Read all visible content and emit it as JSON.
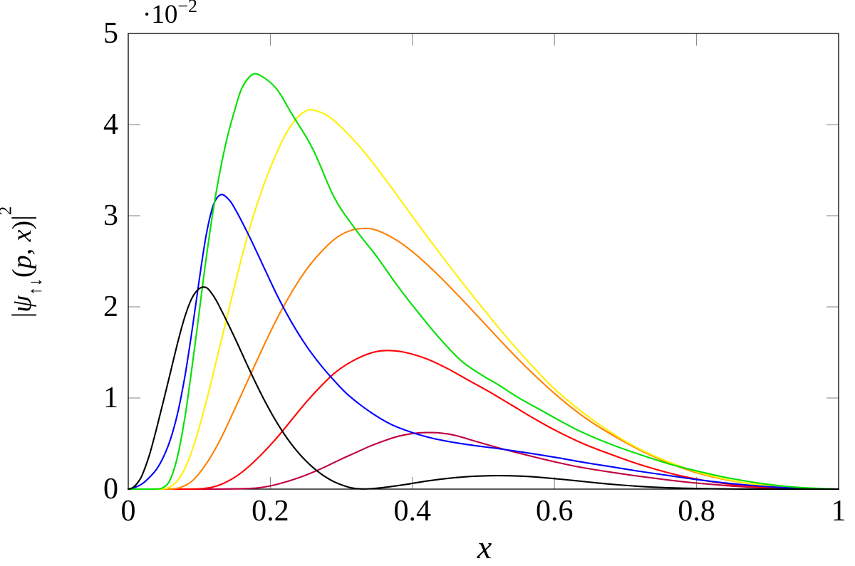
{
  "figure": {
    "x_axis_label": "x",
    "y_axis_label": {
      "bar_open": "|",
      "psi": "ψ",
      "subscript": "↑↓",
      "paren_open": "(",
      "vars": "p, x",
      "paren_close": ")|",
      "exponent": "2"
    },
    "multiplier": {
      "base": "·10",
      "exponent": "−2"
    },
    "x_tick_labels": [
      "0",
      "0.2",
      "0.4",
      "0.6",
      "0.8",
      "1"
    ],
    "y_tick_labels": [
      "0",
      "1",
      "2",
      "3",
      "4",
      "5"
    ]
  },
  "chart_data": {
    "type": "line",
    "title": "",
    "xlabel": "x",
    "ylabel": "|ψ↑↓(p, x)|²",
    "y_axis_multiplier": "·10⁻²",
    "xlim": [
      0,
      1
    ],
    "ylim": [
      0,
      0.05
    ],
    "x_ticks": [
      0,
      0.2,
      0.4,
      0.6,
      0.8,
      1
    ],
    "y_ticks_units": [
      0,
      1,
      2,
      3,
      4,
      5
    ],
    "y_unit": "1e-2",
    "grid": false,
    "legend": "none",
    "note": "Seven unlabeled bell-shaped curves; y values of series points are in units of 10^-2. The black curve has a node near x=0.32 and a small second hump near x=0.52.",
    "series": [
      {
        "name": "purple",
        "color": "#BF0040",
        "points": [
          [
            0,
            0
          ],
          [
            0.12,
            0
          ],
          [
            0.16,
            0.005
          ],
          [
            0.18,
            0.012
          ],
          [
            0.2,
            0.035
          ],
          [
            0.22,
            0.075
          ],
          [
            0.24,
            0.125
          ],
          [
            0.26,
            0.185
          ],
          [
            0.28,
            0.255
          ],
          [
            0.3,
            0.33
          ],
          [
            0.32,
            0.4
          ],
          [
            0.34,
            0.47
          ],
          [
            0.36,
            0.53
          ],
          [
            0.38,
            0.58
          ],
          [
            0.4,
            0.61
          ],
          [
            0.42,
            0.62
          ],
          [
            0.44,
            0.615
          ],
          [
            0.46,
            0.59
          ],
          [
            0.48,
            0.545
          ],
          [
            0.5,
            0.5
          ],
          [
            0.52,
            0.455
          ],
          [
            0.56,
            0.375
          ],
          [
            0.6,
            0.3
          ],
          [
            0.64,
            0.235
          ],
          [
            0.68,
            0.185
          ],
          [
            0.72,
            0.14
          ],
          [
            0.76,
            0.1
          ],
          [
            0.8,
            0.066
          ],
          [
            0.84,
            0.04
          ],
          [
            0.88,
            0.02
          ],
          [
            0.92,
            0.008
          ],
          [
            0.96,
            0.002
          ],
          [
            1,
            0
          ]
        ]
      },
      {
        "name": "red",
        "color": "#FF0000",
        "points": [
          [
            0,
            0
          ],
          [
            0.08,
            0
          ],
          [
            0.11,
            0.01
          ],
          [
            0.13,
            0.05
          ],
          [
            0.15,
            0.13
          ],
          [
            0.17,
            0.25
          ],
          [
            0.19,
            0.4
          ],
          [
            0.21,
            0.57
          ],
          [
            0.23,
            0.76
          ],
          [
            0.25,
            0.95
          ],
          [
            0.27,
            1.12
          ],
          [
            0.29,
            1.27
          ],
          [
            0.31,
            1.38
          ],
          [
            0.33,
            1.46
          ],
          [
            0.35,
            1.51
          ],
          [
            0.37,
            1.52
          ],
          [
            0.39,
            1.5
          ],
          [
            0.42,
            1.43
          ],
          [
            0.45,
            1.32
          ],
          [
            0.48,
            1.19
          ],
          [
            0.51,
            1.06
          ],
          [
            0.54,
            0.92
          ],
          [
            0.57,
            0.78
          ],
          [
            0.6,
            0.65
          ],
          [
            0.64,
            0.5
          ],
          [
            0.68,
            0.38
          ],
          [
            0.72,
            0.27
          ],
          [
            0.76,
            0.18
          ],
          [
            0.8,
            0.11
          ],
          [
            0.84,
            0.06
          ],
          [
            0.88,
            0.028
          ],
          [
            0.92,
            0.01
          ],
          [
            0.96,
            0.002
          ],
          [
            1,
            0
          ]
        ]
      },
      {
        "name": "orange",
        "color": "#FF8000",
        "points": [
          [
            0,
            0
          ],
          [
            0.05,
            0
          ],
          [
            0.07,
            0.01
          ],
          [
            0.09,
            0.09
          ],
          [
            0.11,
            0.28
          ],
          [
            0.13,
            0.55
          ],
          [
            0.15,
            0.88
          ],
          [
            0.17,
            1.22
          ],
          [
            0.19,
            1.56
          ],
          [
            0.21,
            1.88
          ],
          [
            0.23,
            2.16
          ],
          [
            0.25,
            2.4
          ],
          [
            0.27,
            2.59
          ],
          [
            0.29,
            2.74
          ],
          [
            0.31,
            2.83
          ],
          [
            0.33,
            2.86
          ],
          [
            0.35,
            2.84
          ],
          [
            0.38,
            2.72
          ],
          [
            0.41,
            2.54
          ],
          [
            0.44,
            2.32
          ],
          [
            0.47,
            2.08
          ],
          [
            0.5,
            1.83
          ],
          [
            0.53,
            1.58
          ],
          [
            0.56,
            1.34
          ],
          [
            0.6,
            1.05
          ],
          [
            0.64,
            0.8
          ],
          [
            0.68,
            0.6
          ],
          [
            0.72,
            0.43
          ],
          [
            0.76,
            0.29
          ],
          [
            0.8,
            0.18
          ],
          [
            0.84,
            0.105
          ],
          [
            0.88,
            0.055
          ],
          [
            0.92,
            0.024
          ],
          [
            0.96,
            0.007
          ],
          [
            1,
            0
          ]
        ]
      },
      {
        "name": "yellow",
        "color": "#FFF000",
        "points": [
          [
            0,
            0
          ],
          [
            0.04,
            0
          ],
          [
            0.055,
            0.01
          ],
          [
            0.07,
            0.1
          ],
          [
            0.085,
            0.32
          ],
          [
            0.1,
            0.68
          ],
          [
            0.115,
            1.12
          ],
          [
            0.13,
            1.6
          ],
          [
            0.145,
            2.08
          ],
          [
            0.16,
            2.55
          ],
          [
            0.175,
            2.97
          ],
          [
            0.19,
            3.32
          ],
          [
            0.205,
            3.62
          ],
          [
            0.22,
            3.87
          ],
          [
            0.235,
            4.05
          ],
          [
            0.25,
            4.15
          ],
          [
            0.26,
            4.16
          ],
          [
            0.28,
            4.1
          ],
          [
            0.3,
            3.97
          ],
          [
            0.33,
            3.72
          ],
          [
            0.36,
            3.42
          ],
          [
            0.39,
            3.1
          ],
          [
            0.42,
            2.78
          ],
          [
            0.45,
            2.47
          ],
          [
            0.48,
            2.17
          ],
          [
            0.51,
            1.88
          ],
          [
            0.54,
            1.6
          ],
          [
            0.57,
            1.34
          ],
          [
            0.6,
            1.1
          ],
          [
            0.64,
            0.84
          ],
          [
            0.68,
            0.62
          ],
          [
            0.72,
            0.44
          ],
          [
            0.76,
            0.3
          ],
          [
            0.8,
            0.19
          ],
          [
            0.84,
            0.11
          ],
          [
            0.88,
            0.055
          ],
          [
            0.92,
            0.024
          ],
          [
            0.96,
            0.007
          ],
          [
            1,
            0
          ]
        ]
      },
      {
        "name": "blue",
        "color": "#0000FF",
        "points": [
          [
            0,
            0
          ],
          [
            0.01,
            0.02
          ],
          [
            0.02,
            0.06
          ],
          [
            0.03,
            0.13
          ],
          [
            0.04,
            0.22
          ],
          [
            0.05,
            0.36
          ],
          [
            0.06,
            0.56
          ],
          [
            0.07,
            0.85
          ],
          [
            0.08,
            1.25
          ],
          [
            0.09,
            1.75
          ],
          [
            0.1,
            2.3
          ],
          [
            0.11,
            2.8
          ],
          [
            0.12,
            3.12
          ],
          [
            0.13,
            3.23
          ],
          [
            0.14,
            3.19
          ],
          [
            0.15,
            3.08
          ],
          [
            0.17,
            2.78
          ],
          [
            0.19,
            2.45
          ],
          [
            0.21,
            2.12
          ],
          [
            0.23,
            1.83
          ],
          [
            0.25,
            1.58
          ],
          [
            0.27,
            1.37
          ],
          [
            0.29,
            1.19
          ],
          [
            0.31,
            1.03
          ],
          [
            0.34,
            0.85
          ],
          [
            0.37,
            0.71
          ],
          [
            0.4,
            0.62
          ],
          [
            0.43,
            0.555
          ],
          [
            0.46,
            0.51
          ],
          [
            0.49,
            0.475
          ],
          [
            0.52,
            0.445
          ],
          [
            0.56,
            0.4
          ],
          [
            0.6,
            0.35
          ],
          [
            0.64,
            0.295
          ],
          [
            0.68,
            0.245
          ],
          [
            0.72,
            0.195
          ],
          [
            0.76,
            0.15
          ],
          [
            0.8,
            0.105
          ],
          [
            0.84,
            0.068
          ],
          [
            0.88,
            0.038
          ],
          [
            0.92,
            0.017
          ],
          [
            0.96,
            0.005
          ],
          [
            1,
            0
          ]
        ]
      },
      {
        "name": "green",
        "color": "#00E000",
        "points": [
          [
            0,
            0
          ],
          [
            0.035,
            0
          ],
          [
            0.05,
            0.02
          ],
          [
            0.06,
            0.12
          ],
          [
            0.07,
            0.38
          ],
          [
            0.08,
            0.8
          ],
          [
            0.09,
            1.35
          ],
          [
            0.1,
            1.95
          ],
          [
            0.11,
            2.55
          ],
          [
            0.12,
            3.08
          ],
          [
            0.13,
            3.52
          ],
          [
            0.14,
            3.88
          ],
          [
            0.15,
            4.16
          ],
          [
            0.16,
            4.4
          ],
          [
            0.175,
            4.55
          ],
          [
            0.19,
            4.52
          ],
          [
            0.21,
            4.38
          ],
          [
            0.23,
            4.12
          ],
          [
            0.26,
            3.73
          ],
          [
            0.29,
            3.2
          ],
          [
            0.32,
            2.85
          ],
          [
            0.35,
            2.55
          ],
          [
            0.38,
            2.22
          ],
          [
            0.41,
            1.92
          ],
          [
            0.44,
            1.64
          ],
          [
            0.47,
            1.4
          ],
          [
            0.5,
            1.24
          ],
          [
            0.52,
            1.15
          ],
          [
            0.55,
            1.0
          ],
          [
            0.58,
            0.87
          ],
          [
            0.61,
            0.74
          ],
          [
            0.64,
            0.62
          ],
          [
            0.68,
            0.49
          ],
          [
            0.72,
            0.38
          ],
          [
            0.76,
            0.28
          ],
          [
            0.8,
            0.2
          ],
          [
            0.84,
            0.13
          ],
          [
            0.88,
            0.075
          ],
          [
            0.92,
            0.035
          ],
          [
            0.96,
            0.012
          ],
          [
            1,
            0
          ]
        ]
      },
      {
        "name": "black",
        "color": "#000000",
        "points": [
          [
            0,
            0
          ],
          [
            0.005,
            0.01
          ],
          [
            0.01,
            0.04
          ],
          [
            0.015,
            0.09
          ],
          [
            0.02,
            0.16
          ],
          [
            0.03,
            0.38
          ],
          [
            0.04,
            0.67
          ],
          [
            0.05,
            0.98
          ],
          [
            0.06,
            1.3
          ],
          [
            0.07,
            1.62
          ],
          [
            0.08,
            1.9
          ],
          [
            0.09,
            2.1
          ],
          [
            0.1,
            2.2
          ],
          [
            0.11,
            2.21
          ],
          [
            0.12,
            2.12
          ],
          [
            0.13,
            1.98
          ],
          [
            0.15,
            1.66
          ],
          [
            0.17,
            1.32
          ],
          [
            0.19,
            1.0
          ],
          [
            0.21,
            0.72
          ],
          [
            0.23,
            0.49
          ],
          [
            0.25,
            0.31
          ],
          [
            0.27,
            0.175
          ],
          [
            0.29,
            0.08
          ],
          [
            0.31,
            0.022
          ],
          [
            0.325,
            0.003
          ],
          [
            0.34,
            0.004
          ],
          [
            0.36,
            0.018
          ],
          [
            0.39,
            0.05
          ],
          [
            0.42,
            0.088
          ],
          [
            0.45,
            0.118
          ],
          [
            0.48,
            0.138
          ],
          [
            0.51,
            0.147
          ],
          [
            0.54,
            0.146
          ],
          [
            0.57,
            0.135
          ],
          [
            0.6,
            0.115
          ],
          [
            0.63,
            0.092
          ],
          [
            0.66,
            0.068
          ],
          [
            0.69,
            0.047
          ],
          [
            0.72,
            0.03
          ],
          [
            0.75,
            0.018
          ],
          [
            0.78,
            0.01
          ],
          [
            0.82,
            0.004
          ],
          [
            0.86,
            0.001
          ],
          [
            0.9,
            0
          ],
          [
            1,
            0
          ]
        ]
      }
    ]
  }
}
